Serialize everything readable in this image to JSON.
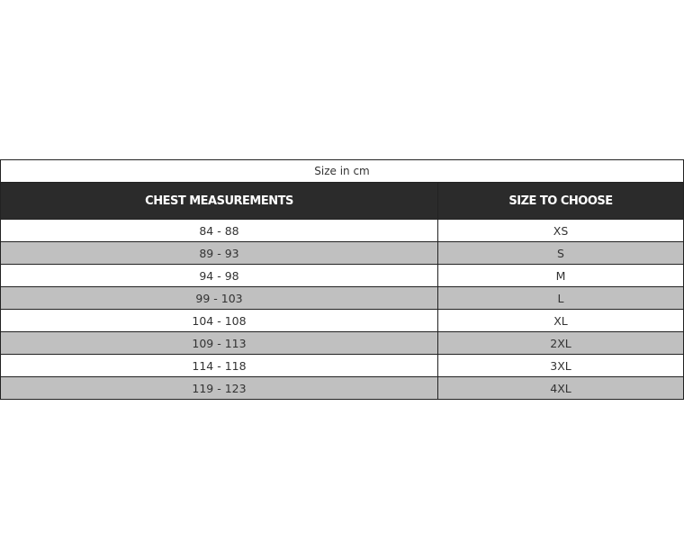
{
  "caption": "Size in cm",
  "headers": [
    "CHEST MEASUREMENTS",
    "SIZE TO CHOOSE"
  ],
  "rows": [
    [
      "84 - 88",
      "XS"
    ],
    [
      "89 - 93",
      "S"
    ],
    [
      "94 - 98",
      "M"
    ],
    [
      "99 - 103",
      "L"
    ],
    [
      "104 - 108",
      "XL"
    ],
    [
      "109 - 113",
      "2XL"
    ],
    [
      "114 - 118",
      "3XL"
    ],
    [
      "119 - 123",
      "4XL"
    ]
  ],
  "colors": {
    "header_bg": "#2b2b2b",
    "alt_row_bg": "#c0c0c0"
  }
}
